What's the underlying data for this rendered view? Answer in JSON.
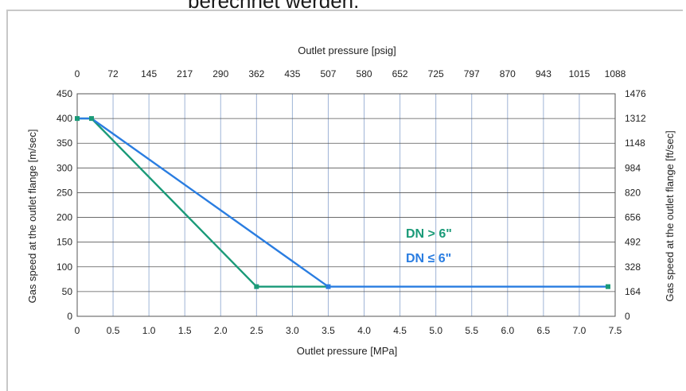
{
  "top_text": "berechnet werden.",
  "chart_data": {
    "type": "line",
    "title": "",
    "xlabel": "Outlet pressure [MPa]",
    "x2label": "Outlet pressure [psig]",
    "ylabel": "Gas speed at the outlet flange [m/sec]",
    "y2label": "Gas speed at the outlet flange [ft/sec]",
    "xlim": [
      0,
      7.5
    ],
    "ylim": [
      0,
      450
    ],
    "grid": true,
    "x_ticks": [
      "0",
      "0.5",
      "1.0",
      "1.5",
      "2.0",
      "2.5",
      "3.0",
      "3.5",
      "4.0",
      "4.5",
      "5.0",
      "5.5",
      "6.0",
      "6.5",
      "7.0",
      "7.5"
    ],
    "x2_ticks": [
      "0",
      "72",
      "145",
      "217",
      "290",
      "362",
      "435",
      "507",
      "580",
      "652",
      "725",
      "797",
      "870",
      "943",
      "1015",
      "1088"
    ],
    "y_ticks": [
      "0",
      "50",
      "100",
      "150",
      "200",
      "250",
      "300",
      "350",
      "400",
      "450"
    ],
    "y2_ticks": [
      "0",
      "164",
      "328",
      "492",
      "656",
      "820",
      "984",
      "1148",
      "1312",
      "1476"
    ],
    "series": [
      {
        "name": "DN > 6\"",
        "color": "#1a9a78",
        "x": [
          0,
          0.2,
          2.5,
          3.5
        ],
        "y": [
          400,
          400,
          60,
          60
        ]
      },
      {
        "name": "DN ≤ 6\"",
        "color": "#2a7de1",
        "x": [
          0,
          0.2,
          3.5,
          7.4
        ],
        "y": [
          400,
          400,
          60,
          60
        ]
      }
    ],
    "markers": [
      {
        "x": 0,
        "y": 400,
        "color": "#1a9a78"
      },
      {
        "x": 0.2,
        "y": 400,
        "color": "#1a9a78"
      },
      {
        "x": 2.5,
        "y": 60,
        "color": "#1a9a78"
      },
      {
        "x": 3.5,
        "y": 60,
        "color": "#2a7de1"
      },
      {
        "x": 7.4,
        "y": 60,
        "color": "#1a9a78"
      }
    ]
  }
}
